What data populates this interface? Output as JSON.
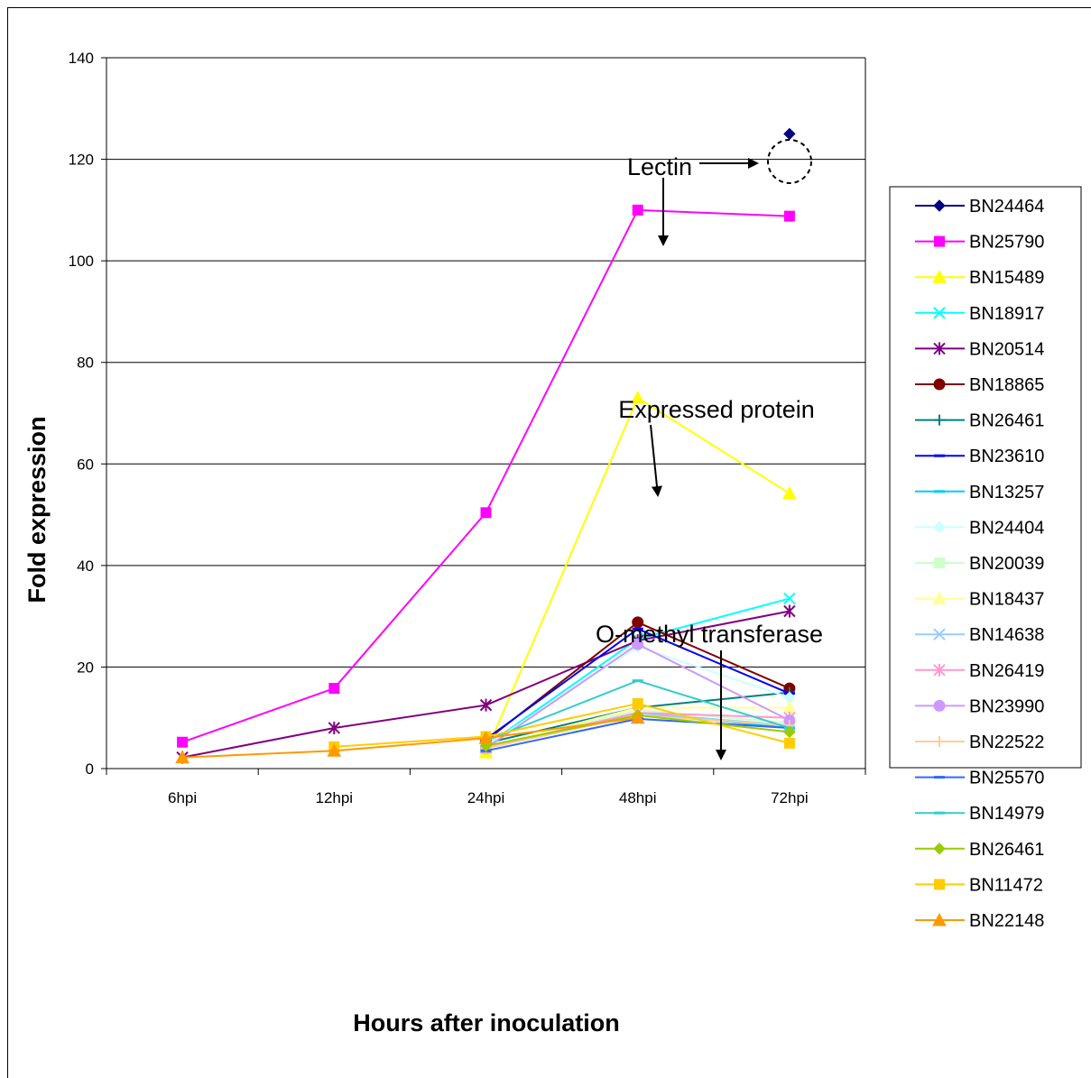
{
  "chart_data": {
    "type": "line",
    "title": "",
    "xlabel": "Hours after inoculation",
    "ylabel": "Fold expression",
    "categories": [
      "6hpi",
      "12hpi",
      "24hpi",
      "48hpi",
      "72hpi"
    ],
    "ylim": [
      0,
      140
    ],
    "yticks": [
      0,
      20,
      40,
      60,
      80,
      100,
      120,
      140
    ],
    "grid": "horizontal",
    "legend_position": "right",
    "series": [
      {
        "name": "BN24464",
        "color": "#000080",
        "marker": "diamond",
        "values": [
          null,
          null,
          null,
          null,
          125
        ]
      },
      {
        "name": "BN25790",
        "color": "#ff00ff",
        "marker": "square",
        "values": [
          5.2,
          15.8,
          50.4,
          110,
          108.8
        ]
      },
      {
        "name": "BN15489",
        "color": "#ffff00",
        "marker": "triangle",
        "values": [
          null,
          null,
          3.2,
          73,
          54.2
        ]
      },
      {
        "name": "BN18917",
        "color": "#00ffff",
        "marker": "x",
        "values": [
          null,
          null,
          4.5,
          25.5,
          33.5
        ]
      },
      {
        "name": "BN20514",
        "color": "#800080",
        "marker": "star",
        "values": [
          2.2,
          8,
          12.5,
          25.2,
          31
        ]
      },
      {
        "name": "BN18865",
        "color": "#800000",
        "marker": "circle",
        "values": [
          null,
          null,
          5.5,
          28.8,
          15.8
        ]
      },
      {
        "name": "BN26461",
        "color": "#008080",
        "marker": "plus",
        "values": [
          null,
          null,
          5,
          12,
          15
        ]
      },
      {
        "name": "BN23610",
        "color": "#0000ff",
        "marker": "dash",
        "values": [
          null,
          null,
          5.8,
          27.5,
          14.8
        ]
      },
      {
        "name": "BN13257",
        "color": "#00ccff",
        "marker": "dash",
        "values": [
          null,
          null,
          4,
          11,
          8
        ]
      },
      {
        "name": "BN24404",
        "color": "#ccffff",
        "marker": "diamond",
        "values": [
          null,
          null,
          4.5,
          24,
          14
        ]
      },
      {
        "name": "BN20039",
        "color": "#ccffcc",
        "marker": "square",
        "values": [
          null,
          null,
          4,
          11.5,
          9
        ]
      },
      {
        "name": "BN18437",
        "color": "#ffff99",
        "marker": "triangle",
        "values": [
          null,
          null,
          4.2,
          12,
          12
        ]
      },
      {
        "name": "BN14638",
        "color": "#99ccff",
        "marker": "x",
        "values": [
          null,
          null,
          4,
          11,
          8.5
        ]
      },
      {
        "name": "BN26419",
        "color": "#ff99cc",
        "marker": "star",
        "values": [
          null,
          null,
          4.2,
          11,
          10
        ]
      },
      {
        "name": "BN23990",
        "color": "#cc99ff",
        "marker": "circle",
        "values": [
          null,
          null,
          4,
          24.5,
          9.5
        ]
      },
      {
        "name": "BN22522",
        "color": "#ffcc99",
        "marker": "plus",
        "values": [
          null,
          null,
          4,
          10.5,
          8.5
        ]
      },
      {
        "name": "BN25570",
        "color": "#3366ff",
        "marker": "dash",
        "values": [
          null,
          null,
          3.5,
          9.8,
          8
        ]
      },
      {
        "name": "BN14979",
        "color": "#33cccc",
        "marker": "dash",
        "values": [
          null,
          null,
          5.5,
          17.3,
          8
        ]
      },
      {
        "name": "BN26461",
        "color": "#99cc00",
        "marker": "diamond",
        "values": [
          null,
          null,
          4.5,
          10.5,
          7.2
        ]
      },
      {
        "name": "BN11472",
        "color": "#ffcc00",
        "marker": "square",
        "values": [
          null,
          4.3,
          6.3,
          12.8,
          5
        ]
      },
      {
        "name": "BN22148",
        "color": "#ff9900",
        "marker": "triangle",
        "values": [
          2.2,
          3.5,
          6,
          10,
          null
        ]
      }
    ],
    "annotations": [
      {
        "text": "Lectin",
        "points_to_series": "BN24464 / BN25790"
      },
      {
        "text": "Expressed protein",
        "points_to_series": "BN15489"
      },
      {
        "text": "O-methyl transferase",
        "points_to_series": "BN20514"
      }
    ]
  }
}
